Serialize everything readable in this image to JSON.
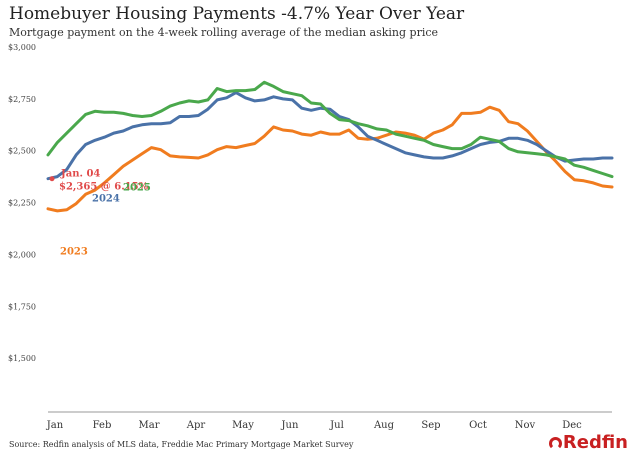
{
  "header": {
    "title": "Homebuyer Housing Payments -4.7% Year Over Year",
    "subtitle": "Mortgage payment on the 4-week rolling average of the median asking price"
  },
  "footer": {
    "source": "Source: Redfin analysis of MLS data, Freddie Mac Primary Mortgage Market Survey",
    "logo": "Redfin"
  },
  "colors": {
    "2023": "#f07c1f",
    "2024": "#4a72a8",
    "2025": "#4aa84c",
    "highlight": "#e04a4a",
    "axis": "#999999"
  },
  "chart_data": {
    "type": "line",
    "title": "Homebuyer Housing Payments -4.7% Year Over Year",
    "subtitle": "Mortgage payment on the 4-week rolling average of the median asking price",
    "xlabel": "",
    "ylabel": "",
    "ylim": [
      1250,
      3000
    ],
    "yticks": [
      1500,
      1750,
      2000,
      2250,
      2500,
      2750,
      3000
    ],
    "ytick_labels": [
      "$1,500",
      "$1,750",
      "$2,000",
      "$2,250",
      "$2,500",
      "$2,750",
      "$3,000"
    ],
    "xlim": [
      0,
      12
    ],
    "month_labels": [
      "Jan",
      "Feb",
      "Mar",
      "Apr",
      "May",
      "Jun",
      "Jul",
      "Aug",
      "Sep",
      "Oct",
      "Nov",
      "Dec"
    ],
    "grid": false,
    "legend": "inline labels",
    "series": [
      {
        "name": "2023",
        "x": [
          0.0,
          0.2,
          0.4,
          0.6,
          0.8,
          1.0,
          1.2,
          1.4,
          1.6,
          1.8,
          2.0,
          2.2,
          2.4,
          2.6,
          2.8,
          3.0,
          3.2,
          3.4,
          3.6,
          3.8,
          4.0,
          4.2,
          4.4,
          4.6,
          4.8,
          5.0,
          5.2,
          5.4,
          5.6,
          5.8,
          6.0,
          6.2,
          6.4,
          6.6,
          6.8,
          7.0,
          7.2,
          7.4,
          7.6,
          7.8,
          8.0,
          8.2,
          8.4,
          8.6,
          8.8,
          9.0,
          9.2,
          9.4,
          9.6,
          9.8,
          10.0,
          10.2,
          10.4,
          10.6,
          10.8,
          11.0,
          11.2,
          11.4,
          11.6,
          11.8,
          12.0
        ],
        "values": [
          2220,
          2210,
          2215,
          2245,
          2290,
          2310,
          2345,
          2385,
          2425,
          2455,
          2485,
          2515,
          2505,
          2475,
          2470,
          2468,
          2465,
          2480,
          2505,
          2520,
          2515,
          2525,
          2535,
          2570,
          2615,
          2600,
          2595,
          2580,
          2575,
          2590,
          2580,
          2580,
          2600,
          2560,
          2555,
          2560,
          2575,
          2590,
          2585,
          2575,
          2555,
          2585,
          2600,
          2625,
          2680,
          2680,
          2685,
          2710,
          2695,
          2640,
          2630,
          2595,
          2545,
          2495,
          2450,
          2400,
          2360,
          2355,
          2345,
          2330,
          2325
        ]
      },
      {
        "name": "2024",
        "x": [
          0.0,
          0.2,
          0.4,
          0.6,
          0.8,
          1.0,
          1.2,
          1.4,
          1.6,
          1.8,
          2.0,
          2.2,
          2.4,
          2.6,
          2.8,
          3.0,
          3.2,
          3.4,
          3.6,
          3.8,
          4.0,
          4.2,
          4.4,
          4.6,
          4.8,
          5.0,
          5.2,
          5.4,
          5.6,
          5.8,
          6.0,
          6.2,
          6.4,
          6.6,
          6.8,
          7.0,
          7.2,
          7.4,
          7.6,
          7.8,
          8.0,
          8.2,
          8.4,
          8.6,
          8.8,
          9.0,
          9.2,
          9.4,
          9.6,
          9.8,
          10.0,
          10.2,
          10.4,
          10.6,
          10.8,
          11.0,
          11.2,
          11.4,
          11.6,
          11.8,
          12.0
        ],
        "values": [
          2365,
          2375,
          2410,
          2480,
          2530,
          2550,
          2565,
          2585,
          2595,
          2615,
          2625,
          2630,
          2630,
          2635,
          2665,
          2665,
          2670,
          2700,
          2745,
          2755,
          2780,
          2755,
          2740,
          2745,
          2760,
          2750,
          2745,
          2705,
          2695,
          2705,
          2700,
          2665,
          2650,
          2615,
          2570,
          2550,
          2530,
          2510,
          2490,
          2480,
          2470,
          2465,
          2465,
          2475,
          2490,
          2510,
          2530,
          2540,
          2545,
          2560,
          2560,
          2550,
          2530,
          2500,
          2470,
          2450,
          2455,
          2460,
          2460,
          2465,
          2465
        ]
      },
      {
        "name": "2025",
        "x": [
          0.0,
          0.2,
          0.4,
          0.6,
          0.8,
          1.0,
          1.2,
          1.4,
          1.6,
          1.8,
          2.0,
          2.2,
          2.4,
          2.6,
          2.8,
          3.0,
          3.2,
          3.4,
          3.6,
          3.8,
          4.0,
          4.2,
          4.4,
          4.6,
          4.8,
          5.0,
          5.2,
          5.4,
          5.6,
          5.8,
          6.0,
          6.2,
          6.4,
          6.6,
          6.8,
          7.0,
          7.2,
          7.4,
          7.6,
          7.8,
          8.0,
          8.2,
          8.4,
          8.6,
          8.8,
          9.0,
          9.2,
          9.4,
          9.6,
          9.8,
          10.0,
          10.2,
          10.4,
          10.6,
          10.8,
          11.0,
          11.2,
          11.4,
          11.6,
          11.8,
          12.0
        ],
        "values": [
          2480,
          2540,
          2585,
          2630,
          2675,
          2690,
          2685,
          2685,
          2680,
          2670,
          2665,
          2670,
          2690,
          2715,
          2730,
          2740,
          2735,
          2745,
          2800,
          2785,
          2790,
          2790,
          2795,
          2830,
          2810,
          2785,
          2775,
          2765,
          2730,
          2725,
          2680,
          2650,
          2645,
          2630,
          2620,
          2605,
          2600,
          2580,
          2570,
          2560,
          2550,
          2530,
          2520,
          2510,
          2510,
          2530,
          2565,
          2555,
          2545,
          2510,
          2495,
          2490,
          2485,
          2480,
          2470,
          2460,
          2430,
          2420,
          2405,
          2390,
          2375
        ]
      }
    ],
    "annotations": [
      {
        "text": "Jan. 04",
        "x": 0.0,
        "y": 2365
      },
      {
        "text": "$2,365 @ 6.15%",
        "x": 0.0,
        "y": 2365
      },
      {
        "text": "2024",
        "series": "2024"
      },
      {
        "text": "2025",
        "series": "2025"
      },
      {
        "text": "2023",
        "series": "2023"
      }
    ]
  }
}
